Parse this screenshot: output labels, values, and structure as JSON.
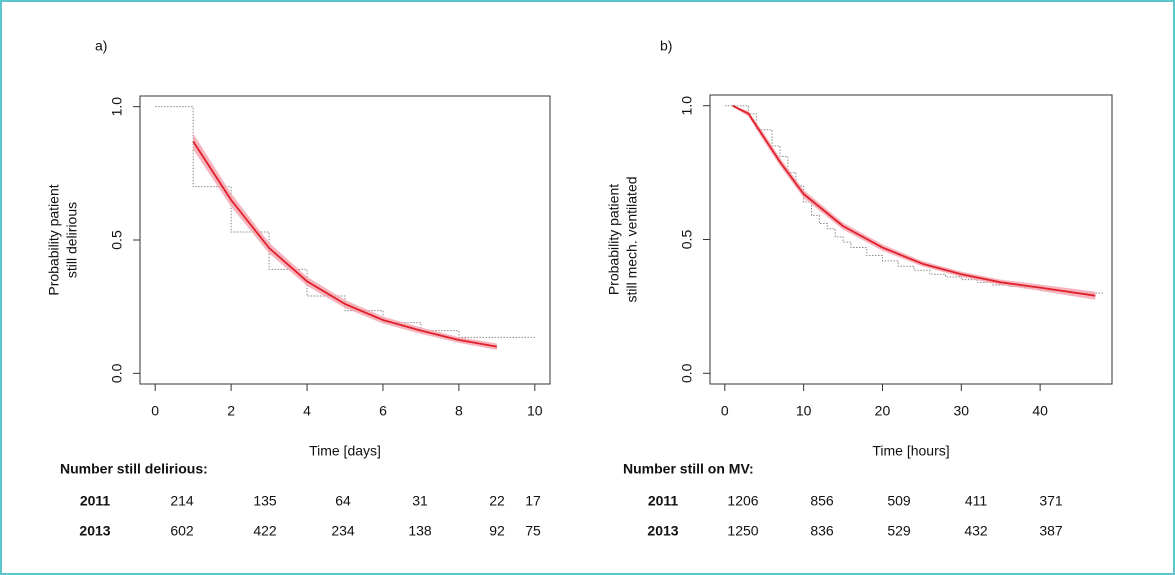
{
  "chart_data": [
    {
      "type": "survival",
      "panel_label": "a)",
      "ylabel": [
        "Probability patient",
        "still delirious"
      ],
      "xlabel": "Time [days]",
      "xlim": [
        -0.4,
        10.4
      ],
      "ylim": [
        -0.04,
        1.04
      ],
      "xticks": [
        0,
        2,
        4,
        6,
        8,
        10
      ],
      "yticks": [
        {
          "value": 0,
          "label": "0.0"
        },
        {
          "value": 0.5,
          "label": "0.5"
        },
        {
          "value": 1,
          "label": "1.0"
        }
      ],
      "series": [
        {
          "kind": "step",
          "color": "#8a8a8a",
          "x": [
            0,
            1,
            2,
            3,
            4,
            5,
            6,
            7,
            8,
            10
          ],
          "values": [
            1.0,
            0.7,
            0.53,
            0.39,
            0.29,
            0.235,
            0.19,
            0.16,
            0.135,
            0.135
          ]
        },
        {
          "kind": "fit",
          "color": "#e0202a",
          "band_color": "#f4a3ae",
          "x": [
            1,
            2,
            3,
            4,
            5,
            6,
            7,
            8,
            9
          ],
          "values": [
            0.87,
            0.65,
            0.47,
            0.345,
            0.26,
            0.2,
            0.16,
            0.125,
            0.1
          ],
          "lower": [
            0.84,
            0.625,
            0.45,
            0.328,
            0.245,
            0.187,
            0.148,
            0.114,
            0.088
          ],
          "upper": [
            0.9,
            0.675,
            0.49,
            0.362,
            0.275,
            0.213,
            0.172,
            0.136,
            0.112
          ]
        }
      ],
      "risk_table": {
        "title": "Number still delirious:",
        "rows": [
          {
            "label": "2011",
            "values": [
              214,
              135,
              64,
              31,
              22,
              17
            ]
          },
          {
            "label": "2013",
            "values": [
              602,
              422,
              234,
              138,
              92,
              75
            ]
          }
        ]
      }
    },
    {
      "type": "survival",
      "panel_label": "b)",
      "ylabel": [
        "Probability patient",
        "still mech. ventilated"
      ],
      "xlabel": "Time [hours]",
      "xlim": [
        -1.88,
        49.12
      ],
      "ylim": [
        -0.04,
        1.04
      ],
      "xticks": [
        0,
        10,
        20,
        30,
        40
      ],
      "yticks": [
        {
          "value": 0,
          "label": "0.0"
        },
        {
          "value": 0.5,
          "label": "0.5"
        },
        {
          "value": 1,
          "label": "1.0"
        }
      ],
      "series": [
        {
          "kind": "step",
          "color": "#8a8a8a",
          "x": [
            0,
            3,
            4,
            6,
            7,
            8,
            9,
            10,
            11,
            12,
            13,
            14,
            15,
            16,
            18,
            20,
            22,
            24,
            26,
            28,
            30,
            32,
            34,
            36,
            38,
            40,
            44,
            48
          ],
          "values": [
            1.0,
            0.97,
            0.91,
            0.85,
            0.81,
            0.75,
            0.7,
            0.64,
            0.59,
            0.56,
            0.54,
            0.51,
            0.49,
            0.47,
            0.44,
            0.42,
            0.4,
            0.385,
            0.37,
            0.36,
            0.35,
            0.34,
            0.33,
            0.325,
            0.32,
            0.31,
            0.3,
            0.3
          ]
        },
        {
          "kind": "fit",
          "color": "#e0202a",
          "band_color": "#f4a3ae",
          "x": [
            1,
            3,
            5,
            7,
            10,
            15,
            20,
            25,
            30,
            35,
            40,
            47
          ],
          "values": [
            1.0,
            0.97,
            0.88,
            0.79,
            0.67,
            0.55,
            0.47,
            0.41,
            0.37,
            0.34,
            0.32,
            0.29
          ],
          "lower": [
            0.995,
            0.96,
            0.865,
            0.775,
            0.655,
            0.537,
            0.458,
            0.4,
            0.36,
            0.33,
            0.308,
            0.275
          ],
          "upper": [
            1.0,
            0.98,
            0.895,
            0.805,
            0.685,
            0.563,
            0.482,
            0.42,
            0.38,
            0.35,
            0.332,
            0.305
          ]
        }
      ],
      "risk_table": {
        "title": "Number still on MV:",
        "rows": [
          {
            "label": "2011",
            "values": [
              1206,
              856,
              509,
              411,
              371
            ]
          },
          {
            "label": "2013",
            "values": [
              1250,
              836,
              529,
              432,
              387
            ]
          }
        ]
      }
    }
  ]
}
